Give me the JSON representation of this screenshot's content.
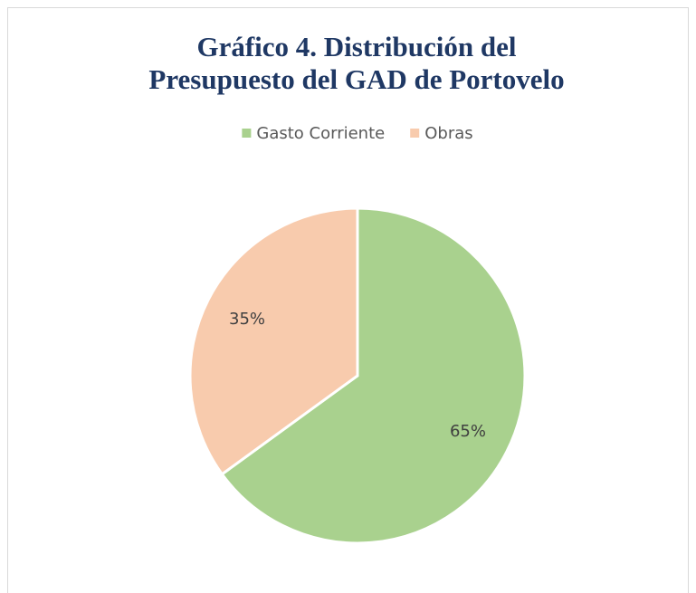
{
  "chart_data": {
    "type": "pie",
    "title": "Gráfico 4. Distribución del Presupuesto del GAD de Portovelo",
    "categories": [
      "Gasto Corriente",
      "Obras"
    ],
    "values": [
      65,
      35
    ],
    "value_labels": [
      "65%",
      "35%"
    ],
    "colors": [
      "#a9d18e",
      "#f8cbad"
    ],
    "legend": "top"
  }
}
